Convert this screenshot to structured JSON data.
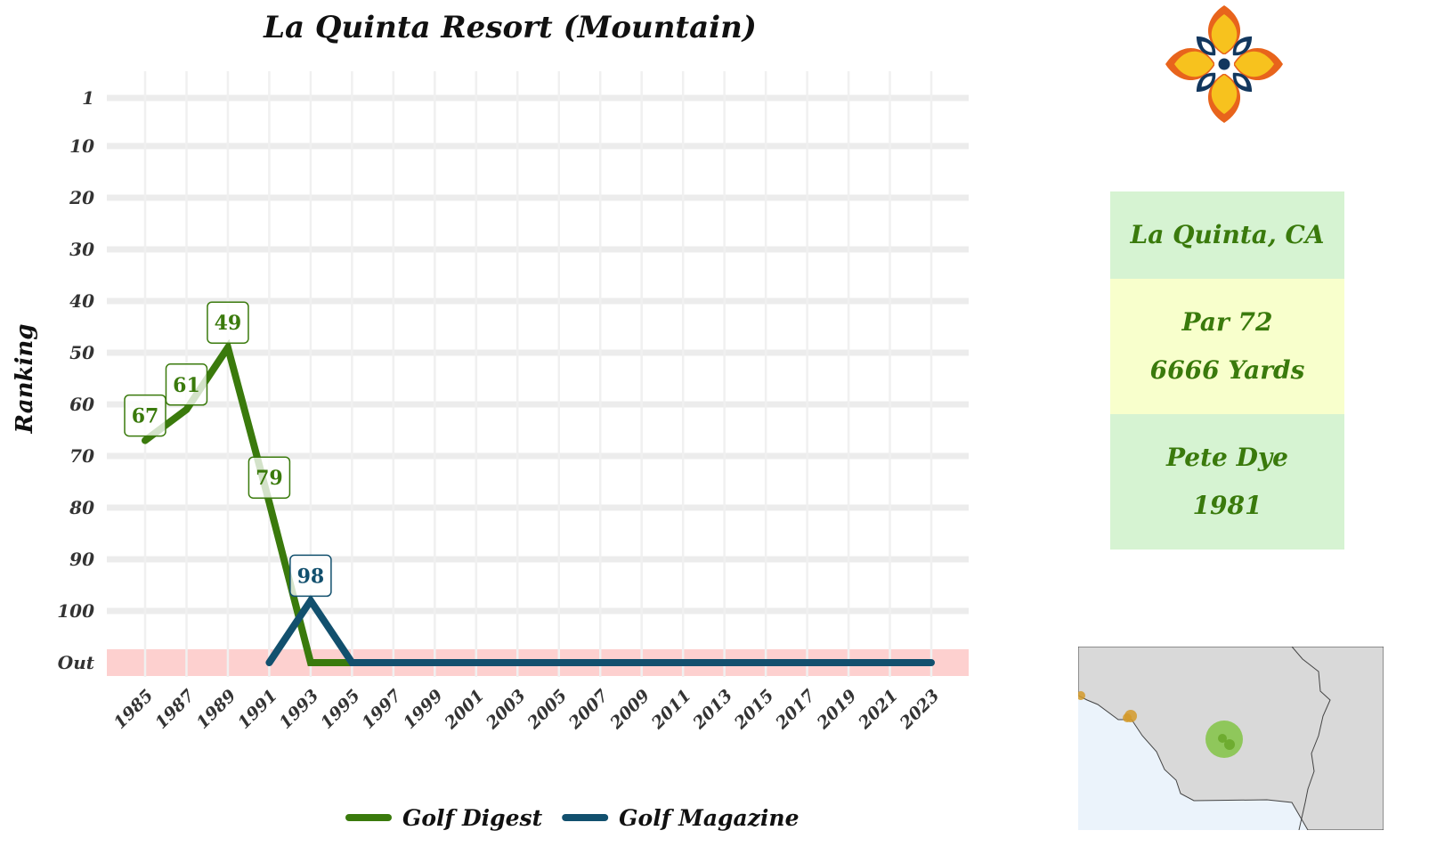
{
  "chart_data": {
    "type": "line",
    "title": "La Quinta Resort (Mountain)",
    "ylabel": "Ranking",
    "xlabel": "",
    "x_ticks": [
      "1985",
      "1987",
      "1989",
      "1991",
      "1993",
      "1995",
      "1997",
      "1999",
      "2001",
      "2003",
      "2005",
      "2007",
      "2009",
      "2011",
      "2013",
      "2015",
      "2017",
      "2019",
      "2021",
      "2023"
    ],
    "y_ticks": [
      "1",
      "10",
      "20",
      "30",
      "40",
      "50",
      "60",
      "70",
      "80",
      "90",
      "100",
      "Out"
    ],
    "y_reversed": true,
    "out_band": "Out",
    "grid": true,
    "legend_position": "bottom",
    "series": [
      {
        "name": "Golf Digest",
        "color": "#3a7a0c",
        "points": [
          {
            "x": 1985,
            "y": 67,
            "label": "67"
          },
          {
            "x": 1987,
            "y": 61,
            "label": "61"
          },
          {
            "x": 1989,
            "y": 49,
            "label": "49"
          },
          {
            "x": 1991,
            "y": 79,
            "label": "79"
          },
          {
            "x": 1993,
            "y": "Out"
          },
          {
            "x": 1995,
            "y": "Out"
          }
        ]
      },
      {
        "name": "Golf Magazine",
        "color": "#12506e",
        "points": [
          {
            "x": 1991,
            "y": "Out"
          },
          {
            "x": 1993,
            "y": 98,
            "label": "98"
          },
          {
            "x": 1995,
            "y": "Out"
          },
          {
            "x": 1997,
            "y": "Out"
          },
          {
            "x": 1999,
            "y": "Out"
          },
          {
            "x": 2001,
            "y": "Out"
          },
          {
            "x": 2003,
            "y": "Out"
          },
          {
            "x": 2005,
            "y": "Out"
          },
          {
            "x": 2007,
            "y": "Out"
          },
          {
            "x": 2009,
            "y": "Out"
          },
          {
            "x": 2011,
            "y": "Out"
          },
          {
            "x": 2013,
            "y": "Out"
          },
          {
            "x": 2015,
            "y": "Out"
          },
          {
            "x": 2017,
            "y": "Out"
          },
          {
            "x": 2019,
            "y": "Out"
          },
          {
            "x": 2021,
            "y": "Out"
          },
          {
            "x": 2023,
            "y": "Out"
          }
        ]
      }
    ]
  },
  "info": {
    "location": "La Quinta, CA",
    "par": "Par 72",
    "yards": "6666 Yards",
    "designer": "Pete Dye",
    "year": "1981"
  },
  "colors": {
    "out_band": "#fdd0cf",
    "grid": "#ececec",
    "card_green": "#d6f3d2",
    "card_yellow": "#f8ffcc",
    "card_text": "#3a7a0c"
  },
  "icons": {
    "logo": "ornamental-tile-icon",
    "map": "southern-california-map"
  }
}
